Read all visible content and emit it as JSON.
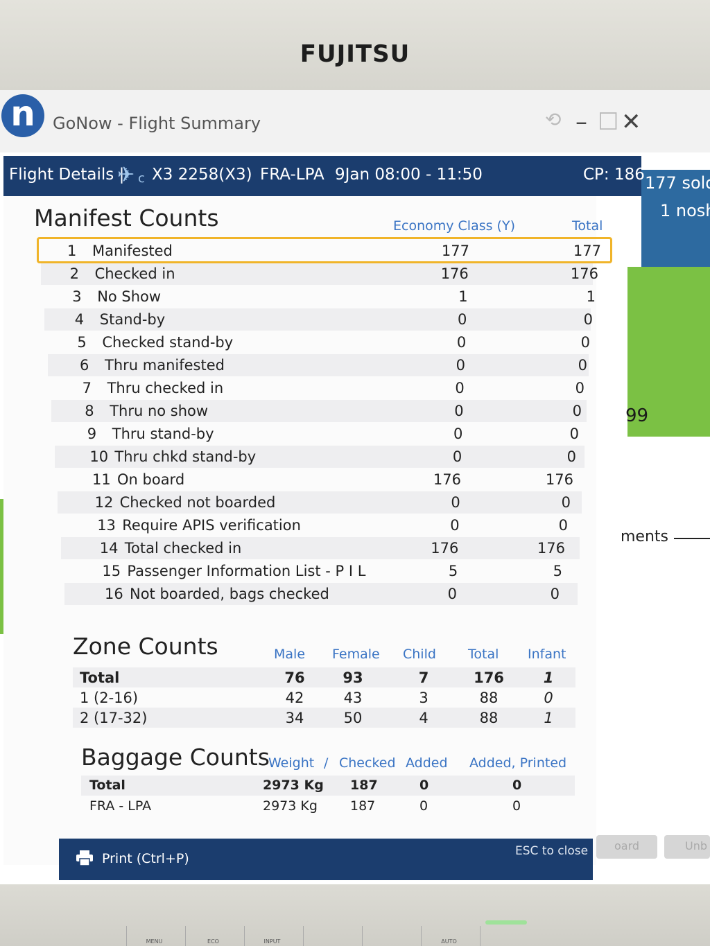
{
  "bezel": {
    "brand": "FUJITSU",
    "buttons": [
      "MENU",
      "ECO",
      "INPUT",
      "",
      "",
      "AUTO",
      ""
    ]
  },
  "app": {
    "logo_letter": "n",
    "title": "GoNow - Flight Summary"
  },
  "background": {
    "sold": "177 sold",
    "noshow": "1 nosh",
    "partial_number": "99",
    "partial_word": "ments",
    "btn_board": "oard",
    "btn_unb": "Unb"
  },
  "header": {
    "label": "Flight Details |",
    "airline_code": "c",
    "flight": "X3 2258(X3)",
    "route": "FRA-LPA",
    "date_time": "9Jan 08:00 - 11:50",
    "cp": "CP: 186"
  },
  "manifest": {
    "title": "Manifest Counts",
    "col_economy": "Economy Class (Y)",
    "col_total": "Total",
    "rows": [
      {
        "n": "1",
        "label": "Manifested",
        "economy": "177",
        "total": "177"
      },
      {
        "n": "2",
        "label": "Checked in",
        "economy": "176",
        "total": "176"
      },
      {
        "n": "3",
        "label": "No Show",
        "economy": "1",
        "total": "1"
      },
      {
        "n": "4",
        "label": "Stand-by",
        "economy": "0",
        "total": "0"
      },
      {
        "n": "5",
        "label": "Checked stand-by",
        "economy": "0",
        "total": "0"
      },
      {
        "n": "6",
        "label": "Thru manifested",
        "economy": "0",
        "total": "0"
      },
      {
        "n": "7",
        "label": "Thru checked in",
        "economy": "0",
        "total": "0"
      },
      {
        "n": "8",
        "label": "Thru no show",
        "economy": "0",
        "total": "0"
      },
      {
        "n": "9",
        "label": "Thru stand-by",
        "economy": "0",
        "total": "0"
      },
      {
        "n": "10",
        "label": "Thru chkd stand-by",
        "economy": "0",
        "total": "0"
      },
      {
        "n": "11",
        "label": "On board",
        "economy": "176",
        "total": "176"
      },
      {
        "n": "12",
        "label": "Checked not boarded",
        "economy": "0",
        "total": "0"
      },
      {
        "n": "13",
        "label": "Require APIS verification",
        "economy": "0",
        "total": "0"
      },
      {
        "n": "14",
        "label": "Total checked in",
        "economy": "176",
        "total": "176"
      },
      {
        "n": "15",
        "label": "Passenger Information List - P I L",
        "economy": "5",
        "total": "5"
      },
      {
        "n": "16",
        "label": "Not boarded, bags checked",
        "economy": "0",
        "total": "0"
      }
    ]
  },
  "zone": {
    "title": "Zone Counts",
    "cols": [
      "Male",
      "Female",
      "Child",
      "Total",
      "Infant"
    ],
    "rows": [
      {
        "label": "Total",
        "male": "76",
        "female": "93",
        "child": "7",
        "total": "176",
        "infant": "1"
      },
      {
        "label": "1 (2-16)",
        "male": "42",
        "female": "43",
        "child": "3",
        "total": "88",
        "infant": "0"
      },
      {
        "label": "2 (17-32)",
        "male": "34",
        "female": "50",
        "child": "4",
        "total": "88",
        "infant": "1"
      }
    ]
  },
  "baggage": {
    "title": "Baggage Counts",
    "cols": [
      "Weight",
      "/",
      "Checked",
      "Added",
      "Added, Printed"
    ],
    "rows": [
      {
        "label": "Total",
        "weight": "2973 Kg",
        "checked": "187",
        "added": "0",
        "printed": "0"
      },
      {
        "label": "FRA - LPA",
        "weight": "2973 Kg",
        "checked": "187",
        "added": "0",
        "printed": "0"
      }
    ]
  },
  "footer": {
    "print": "Print (Ctrl+P)",
    "esc": "ESC to close"
  }
}
